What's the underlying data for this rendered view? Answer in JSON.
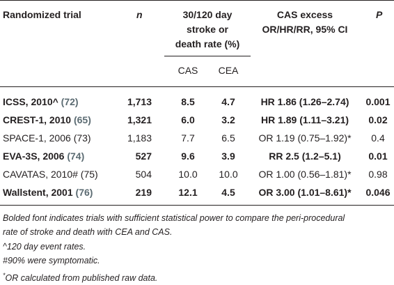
{
  "table": {
    "headers": {
      "trial": "Randomized trial",
      "n": "n",
      "rate_line1": "30/120 day",
      "rate_line2": "stroke or",
      "rate_line3": "death rate (%)",
      "cas": "CAS",
      "cea": "CEA",
      "excess_line1": "CAS excess",
      "excess_line2": "OR/HR/RR, 95% CI",
      "p": "P"
    },
    "rows": [
      {
        "name": "ICSS, 2010^",
        "ref": "(72)",
        "n": "1,713",
        "cas": "8.5",
        "cea": "4.7",
        "excess": "HR 1.86 (1.26–2.74)",
        "p": "0.001"
      },
      {
        "name": "CREST-1, 2010",
        "ref": "(65)",
        "n": "1,321",
        "cas": "6.0",
        "cea": "3.2",
        "excess": "HR 1.89 (1.11–3.21)",
        "p": "0.02"
      },
      {
        "name": "SPACE-1, 2006",
        "ref": "(73)",
        "n": "1,183",
        "cas": "7.7",
        "cea": "6.5",
        "excess": "OR 1.19 (0.75–1.92)*",
        "p": "0.4"
      },
      {
        "name": "EVA-3S, 2006",
        "ref": "(74)",
        "n": "527",
        "cas": "9.6",
        "cea": "3.9",
        "excess": "RR 2.5 (1.2–5.1)",
        "p": "0.01"
      },
      {
        "name": "CAVATAS, 2010#",
        "ref": "(75)",
        "n": "504",
        "cas": "10.0",
        "cea": "10.0",
        "excess": "OR 1.00 (0.56–1.81)*",
        "p": "0.98"
      },
      {
        "name": "Wallstent, 2001",
        "ref": "(76)",
        "n": "219",
        "cas": "12.1",
        "cea": "4.5",
        "excess": "OR 3.00 (1.01–8.61)*",
        "p": "0.046"
      }
    ]
  },
  "footnotes": {
    "line1": "Bolded font indicates trials with sufficient statistical power to compare the peri-procedural",
    "line2": "rate of stroke and death with CEA and CAS.",
    "line3": "^120 day event rates.",
    "line4": "#90% were symptomatic.",
    "line5_sup": "*",
    "line5": "OR calculated from published raw data."
  }
}
